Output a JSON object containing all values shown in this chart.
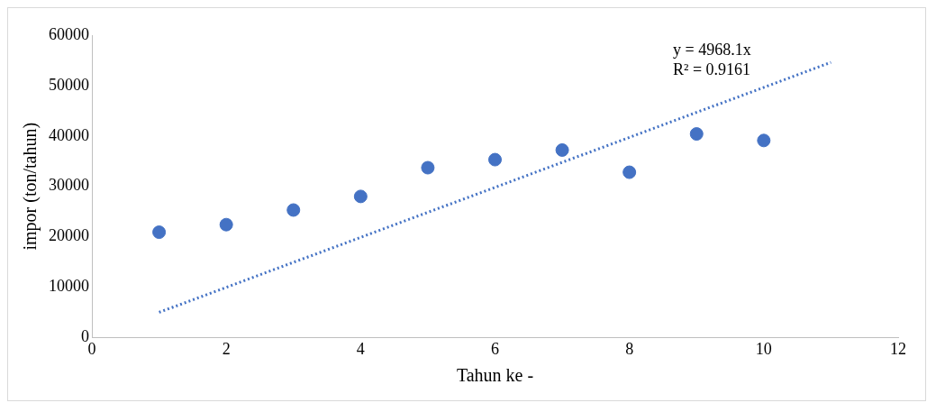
{
  "chart_data": {
    "type": "scatter",
    "xlabel": "Tahun ke -",
    "ylabel": "impor (ton/tahun)",
    "annotations": [
      "y = 4968.1x",
      "R² = 0.9161"
    ],
    "xlim": [
      0,
      12
    ],
    "xticks": [
      0,
      2,
      4,
      6,
      8,
      10,
      12
    ],
    "ylim": [
      0,
      60000
    ],
    "yticks": [
      0,
      10000,
      20000,
      30000,
      40000,
      50000,
      60000
    ],
    "grid": false,
    "legend": false,
    "marker": "circle",
    "series": [
      {
        "color": "#4472c4",
        "x": [
          1,
          2,
          3,
          4,
          5,
          6,
          7,
          8,
          9,
          10
        ],
        "values": [
          20900,
          22400,
          25300,
          28000,
          33700,
          35300,
          37200,
          32800,
          40400,
          39100
        ]
      },
      {
        "type": "line",
        "color": "#4472c4",
        "line_style": "dotted",
        "marker": "none",
        "x": [
          1,
          11
        ],
        "values": [
          5000,
          54600
        ]
      }
    ]
  }
}
